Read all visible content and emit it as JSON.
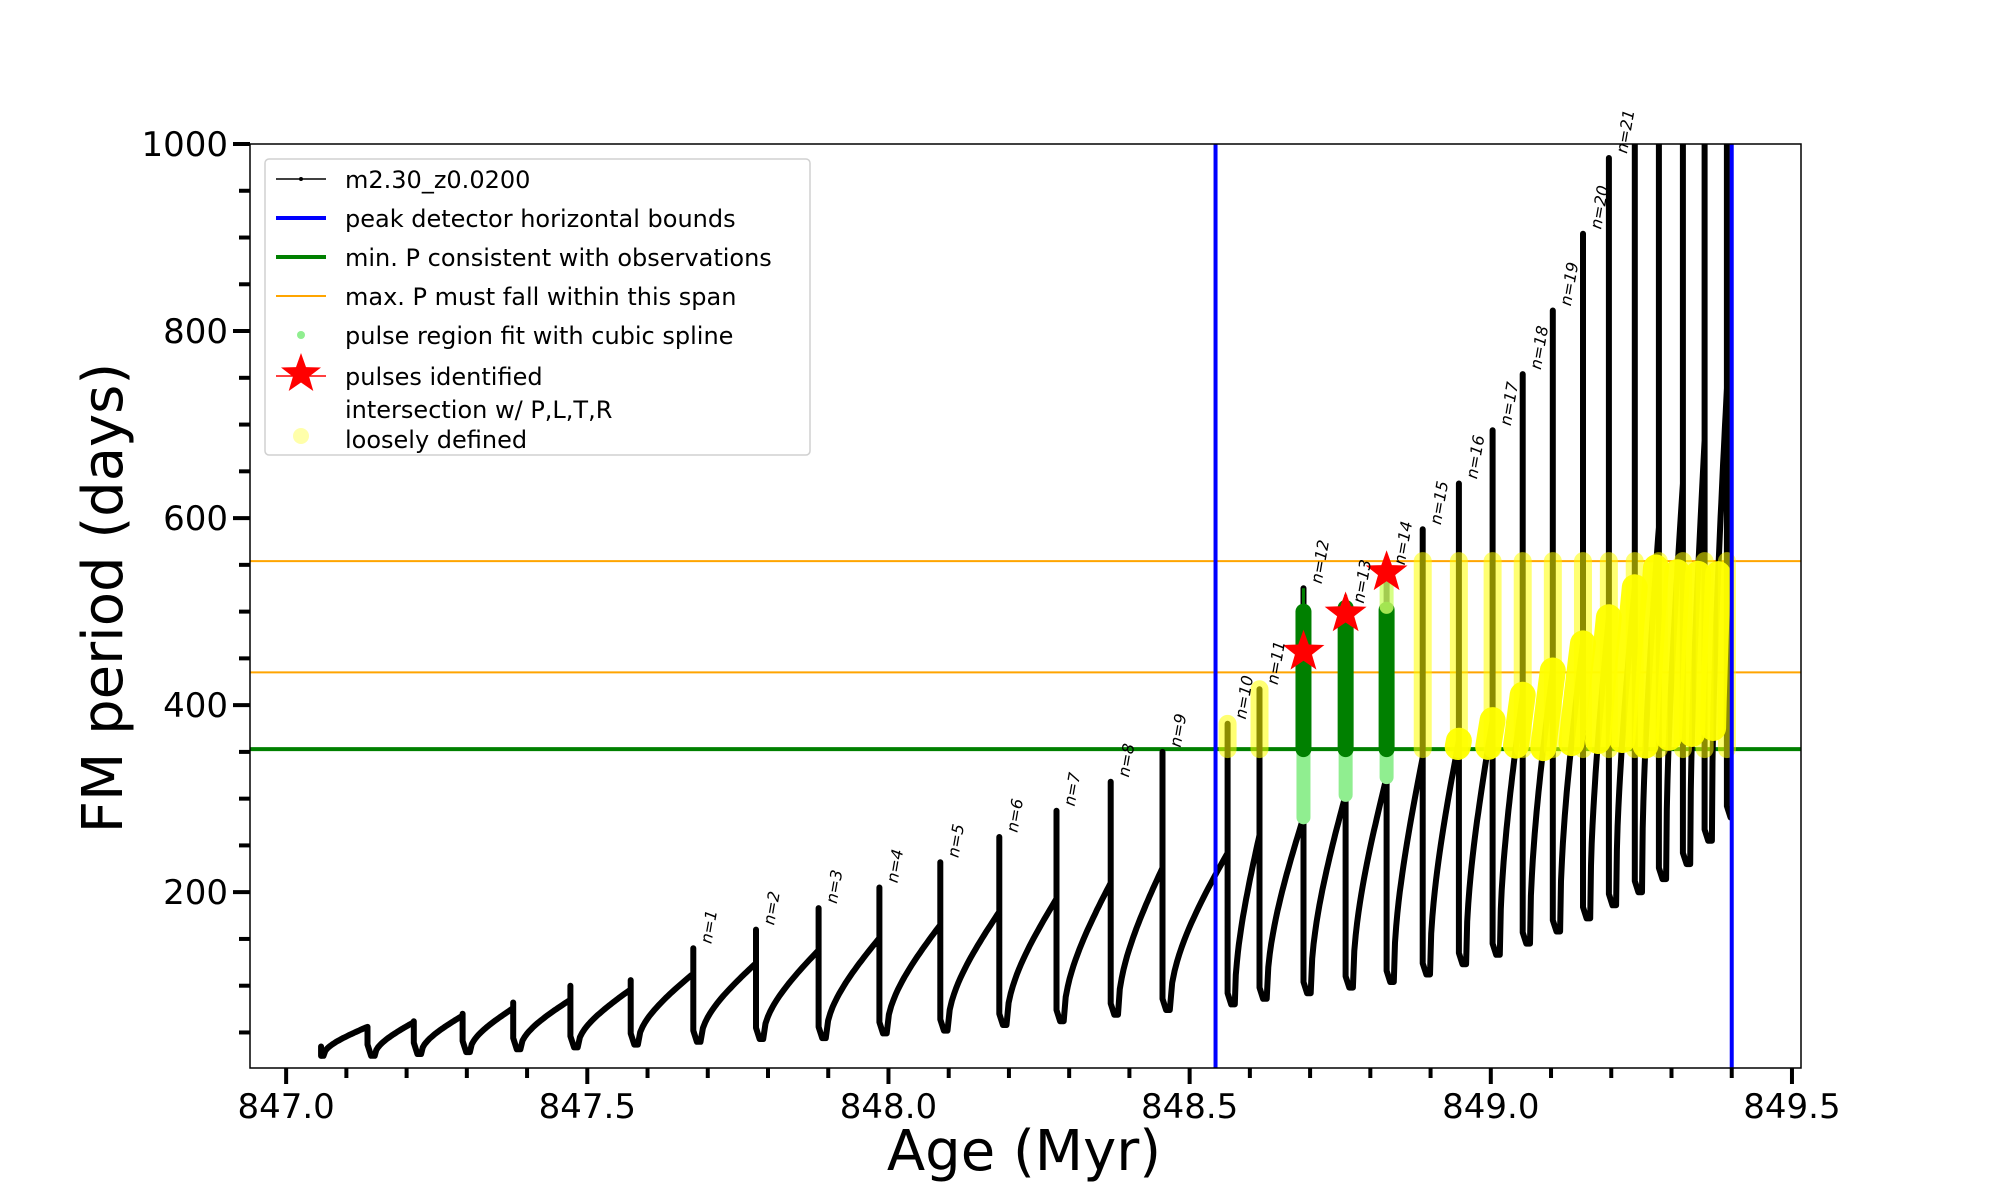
{
  "chart_data": {
    "type": "line",
    "title": "",
    "xlabel": "Age (Myr)",
    "ylabel": "FM period (days)",
    "xlim": [
      846.94,
      849.515
    ],
    "ylim": [
      12,
      1000
    ],
    "x_ticks": [
      847.0,
      847.5,
      848.0,
      848.5,
      849.0,
      849.5
    ],
    "x_tick_labels": [
      "847.0",
      "847.5",
      "848.0",
      "848.5",
      "849.0",
      "849.5"
    ],
    "x_minor_step": 0.1,
    "y_ticks": [
      200,
      400,
      600,
      800,
      1000
    ],
    "y_tick_labels": [
      "200",
      "400",
      "600",
      "800",
      "1000"
    ],
    "y_minor_step": 50,
    "grid": false,
    "legend_position": "top-left",
    "series": [
      {
        "name": "m2.30_z0.0200",
        "color": "#000000",
        "start": {
          "x": 847.058,
          "y": 25
        },
        "pulses": [
          {
            "x": 847.135,
            "peak": 56,
            "spike": 56,
            "min": 25,
            "label": ""
          },
          {
            "x": 847.212,
            "peak": 61,
            "spike": 62,
            "min": 27,
            "label": ""
          },
          {
            "x": 847.293,
            "peak": 68,
            "spike": 70,
            "min": 29,
            "label": ""
          },
          {
            "x": 847.377,
            "peak": 76,
            "spike": 82,
            "min": 32,
            "label": ""
          },
          {
            "x": 847.472,
            "peak": 85,
            "spike": 100,
            "min": 34,
            "label": ""
          },
          {
            "x": 847.572,
            "peak": 96,
            "spike": 106,
            "min": 37,
            "label": ""
          },
          {
            "x": 847.676,
            "peak": 113,
            "spike": 140,
            "min": 40,
            "label": "n=1"
          },
          {
            "x": 847.78,
            "peak": 124,
            "spike": 160,
            "min": 43,
            "label": "n=2"
          },
          {
            "x": 847.884,
            "peak": 138,
            "spike": 183,
            "min": 44,
            "label": "n=3"
          },
          {
            "x": 847.985,
            "peak": 151,
            "spike": 205,
            "min": 49,
            "label": "n=4"
          },
          {
            "x": 848.086,
            "peak": 165,
            "spike": 232,
            "min": 52,
            "label": "n=5"
          },
          {
            "x": 848.184,
            "peak": 179,
            "spike": 259,
            "min": 58,
            "label": "n=6"
          },
          {
            "x": 848.279,
            "peak": 193,
            "spike": 287,
            "min": 62,
            "label": "n=7"
          },
          {
            "x": 848.369,
            "peak": 210,
            "spike": 318,
            "min": 69,
            "label": "n=8"
          },
          {
            "x": 848.455,
            "peak": 226,
            "spike": 350,
            "min": 74,
            "label": "n=9"
          },
          {
            "x": 848.563,
            "peak": 242,
            "spike": 380,
            "min": 80,
            "label": "n=10"
          },
          {
            "x": 848.616,
            "peak": 261,
            "spike": 417,
            "min": 86,
            "label": "n=11"
          },
          {
            "x": 848.689,
            "peak": 280,
            "spike": 525,
            "min": 92,
            "label": "n=12"
          },
          {
            "x": 848.759,
            "peak": 304,
            "spike": 504,
            "min": 98,
            "label": "n=13"
          },
          {
            "x": 848.827,
            "peak": 323,
            "spike": 545,
            "min": 104,
            "label": "n=14"
          },
          {
            "x": 848.887,
            "peak": 344,
            "spike": 588,
            "min": 112,
            "label": "n=15"
          },
          {
            "x": 848.947,
            "peak": 362,
            "spike": 637,
            "min": 123,
            "label": "n=16"
          },
          {
            "x": 849.003,
            "peak": 384,
            "spike": 694,
            "min": 133,
            "label": "n=17"
          },
          {
            "x": 849.053,
            "peak": 411,
            "spike": 754,
            "min": 145,
            "label": "n=18"
          },
          {
            "x": 849.103,
            "peak": 437,
            "spike": 822,
            "min": 158,
            "label": "n=19"
          },
          {
            "x": 849.153,
            "peak": 466,
            "spike": 904,
            "min": 172,
            "label": "n=20"
          },
          {
            "x": 849.196,
            "peak": 494,
            "spike": 985,
            "min": 186,
            "label": "n=21"
          },
          {
            "x": 849.239,
            "peak": 526,
            "spike": 1000,
            "min": 200,
            "label": ""
          },
          {
            "x": 849.279,
            "peak": 590,
            "spike": 1000,
            "min": 214,
            "label": ""
          },
          {
            "x": 849.319,
            "peak": 637,
            "spike": 1000,
            "min": 230,
            "label": ""
          },
          {
            "x": 849.355,
            "peak": 683,
            "spike": 1000,
            "min": 255,
            "label": ""
          },
          {
            "x": 849.392,
            "peak": 739,
            "spike": 1000,
            "min": 280,
            "label": ""
          }
        ]
      }
    ],
    "vertical_lines": [
      {
        "name": "peak detector horizontal bounds",
        "color": "#0000ff",
        "x": [
          848.543,
          849.4
        ]
      }
    ],
    "horizontal_lines": [
      {
        "name": "min. P consistent with observations",
        "color": "#008000",
        "y": [
          353
        ]
      },
      {
        "name": "max. P must fall within this span",
        "color": "#ffa500",
        "y": [
          435,
          554
        ]
      }
    ],
    "pulse_fit_regions": {
      "name": "pulse region fit with cubic spline",
      "color": "#90ee90",
      "dark_color": "#008000",
      "regions": [
        {
          "x": 848.689,
          "y_low": 280,
          "y_high": 500
        },
        {
          "x": 848.759,
          "y_low": 304,
          "y_high": 504
        },
        {
          "x": 848.827,
          "y_low": 323,
          "y_high": 502
        }
      ]
    },
    "pulses_identified": {
      "name": "pulses identified",
      "color": "#ff0000",
      "points": [
        {
          "x": 848.689,
          "y": 457
        },
        {
          "x": 848.759,
          "y": 498
        },
        {
          "x": 848.827,
          "y": 542
        }
      ]
    },
    "intersection": {
      "name": "intersection w/ P,L,T,R\nloosely defined",
      "name_line1": "intersection w/ P,L,T,R",
      "name_line2": "loosely defined",
      "color": "#ffff00",
      "y_low": 353,
      "y_high": 554
    },
    "legend": [
      {
        "label": "m2.30_z0.0200",
        "kind": "line-dot",
        "color": "#000000"
      },
      {
        "label": "peak detector horizontal bounds",
        "kind": "line",
        "color": "#0000ff"
      },
      {
        "label": "min. P consistent with observations",
        "kind": "line",
        "color": "#008000"
      },
      {
        "label": "max. P must fall within this span",
        "kind": "thin-line",
        "color": "#ffa500"
      },
      {
        "label": "pulse region fit with cubic spline",
        "kind": "dot",
        "color": "#90ee90"
      },
      {
        "label": "pulses identified",
        "kind": "star",
        "color": "#ff0000"
      },
      {
        "label": "intersection w/ P,L,T,R",
        "label2": "loosely defined",
        "kind": "dot-big",
        "color": "#ffffaa"
      }
    ]
  }
}
